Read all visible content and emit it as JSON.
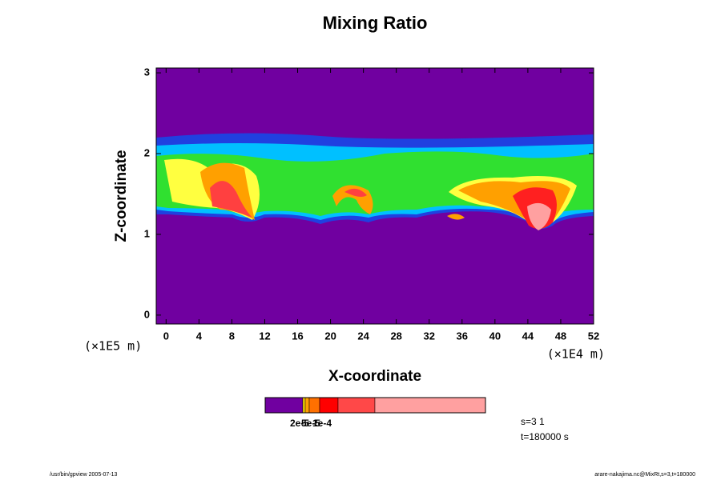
{
  "chart_data": {
    "type": "contour",
    "title": "Mixing Ratio",
    "xlabel": "X-coordinate",
    "ylabel": "Z-coordinate",
    "xunit": "(×1E4 m)",
    "yunit": "(×1E5 m)",
    "xlim": [
      -1.2,
      52
    ],
    "ylim": [
      -0.11,
      3.06
    ],
    "xticks": [
      0,
      4,
      8,
      12,
      16,
      20,
      24,
      28,
      32,
      36,
      40,
      44,
      48,
      52
    ],
    "yticks": [
      0,
      1,
      2,
      3
    ],
    "colorbar": {
      "colors": [
        "#7000a0",
        "#ffe000",
        "#ffa000",
        "#ff7000",
        "#ff0000",
        "#ff4848",
        "#ffa0a0"
      ],
      "labels": [
        "2e-5",
        "5e-5",
        "1e-4"
      ]
    },
    "annotations": [
      "s=3 1",
      "t=180000 s"
    ],
    "footer_left": "/usr/bin/gpview 2005-07-13",
    "footer_right": "arare-nakajima.nc@MixRt,s=3,t=180000"
  }
}
